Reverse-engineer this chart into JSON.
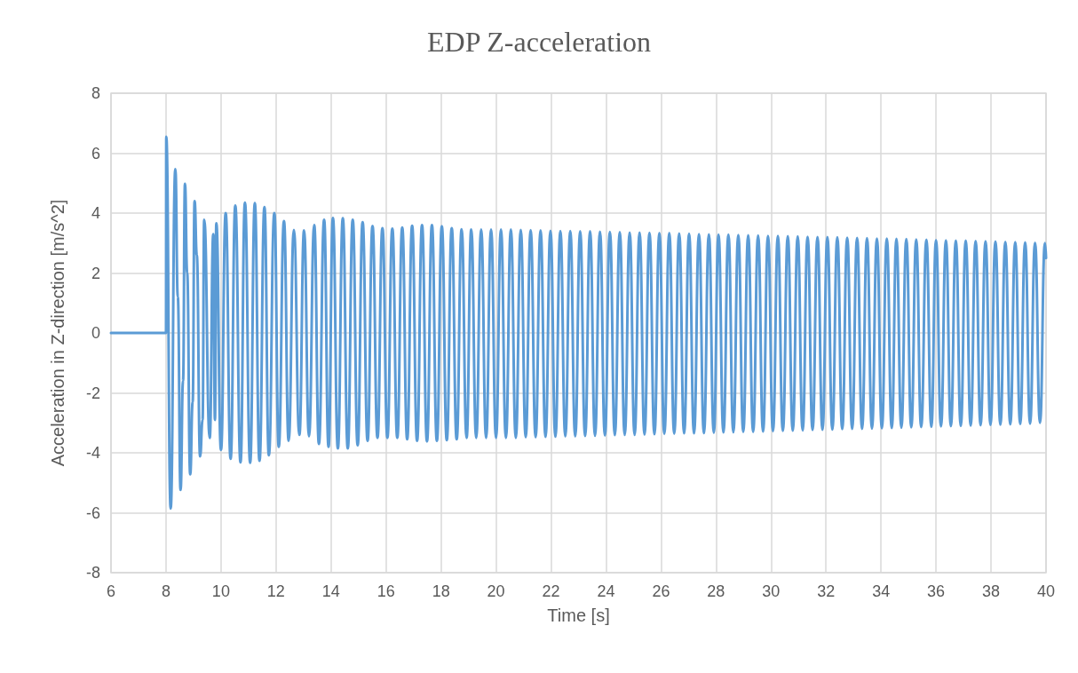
{
  "chart_data": {
    "type": "line",
    "title": "EDP Z-acceleration",
    "xlabel": "Time [s]",
    "ylabel": "Acceleration in Z-direction [m/s^2]",
    "xlim": [
      6,
      40
    ],
    "xticks": [
      6,
      8,
      10,
      12,
      14,
      16,
      18,
      20,
      22,
      24,
      26,
      28,
      30,
      32,
      34,
      36,
      38,
      40
    ],
    "ylim": [
      -8,
      8
    ],
    "yticks": [
      -8,
      -6,
      -4,
      -2,
      0,
      2,
      4,
      6,
      8
    ],
    "grid": true,
    "marker": "none",
    "line_style": "solid",
    "series": [
      {
        "color": "#5b9bd5",
        "x": [
          6,
          8,
          8.01,
          8.17,
          8.34,
          8.43,
          8.53,
          8.62,
          8.69,
          8.77,
          8.88,
          8.97,
          9.04,
          9.12,
          9.24,
          9.33,
          9.39,
          9.59,
          9.72,
          9.78,
          9.83,
          10,
          10.17,
          10.35,
          10.52,
          10.71,
          10.87,
          11.06,
          11.23,
          11.4,
          11.58,
          11.74,
          11.94,
          12.1,
          12.29,
          12.46,
          12.65,
          12.85,
          13.02,
          13.2,
          13.39,
          13.56,
          13.75,
          13.91,
          14.07,
          14.25,
          14.43,
          14.61,
          14.79,
          14.97,
          15.15,
          15.33,
          15.51,
          15.69,
          15.87,
          16.05,
          16.23,
          16.41,
          16.59,
          16.77,
          16.95,
          17.13,
          17.31,
          17.49,
          17.67,
          17.85,
          18.03,
          18.21,
          18.39,
          18.57,
          18.75,
          18.93,
          19.1,
          19.28,
          19.46,
          19.64,
          19.82,
          20,
          20.18,
          20.36,
          20.54,
          20.72,
          20.9,
          21.08,
          21.26,
          21.44,
          21.62,
          21.8,
          21.98,
          22.16,
          22.34,
          22.52,
          22.7,
          22.88,
          23.06,
          23.24,
          23.42,
          23.6,
          23.78,
          23.96,
          24.14,
          24.32,
          24.5,
          24.68,
          24.86,
          25.04,
          25.22,
          25.4,
          25.58,
          25.76,
          25.94,
          26.12,
          26.3,
          26.48,
          26.66,
          26.84,
          27.02,
          27.2,
          27.38,
          27.56,
          27.74,
          27.92,
          28.09,
          28.27,
          28.45,
          28.63,
          28.81,
          28.99,
          29.17,
          29.35,
          29.53,
          29.71,
          29.89,
          30.07,
          30.25,
          30.43,
          30.61,
          30.79,
          30.97,
          31.15,
          31.33,
          31.51,
          31.69,
          31.87,
          32.05,
          32.23,
          32.41,
          32.59,
          32.77,
          32.95,
          33.13,
          33.31,
          33.49,
          33.67,
          33.85,
          34.03,
          34.21,
          34.39,
          34.56,
          34.74,
          34.92,
          35.1,
          35.28,
          35.46,
          35.65,
          35.83,
          36,
          36.18,
          36.36,
          36.54,
          36.72,
          36.9,
          37.08,
          37.26,
          37.44,
          37.62,
          37.8,
          37.98,
          38.16,
          38.34,
          38.52,
          38.7,
          38.88,
          39.06,
          39.24,
          39.42,
          39.6,
          39.78,
          39.96,
          40
        ],
        "values": [
          0,
          0,
          6.55,
          -5.86,
          5.47,
          1.2,
          -5.24,
          -1.6,
          4.98,
          2,
          -4.72,
          -2.3,
          4.4,
          2.6,
          -4.12,
          -2.9,
          3.78,
          -3.5,
          3.3,
          -2.9,
          3.66,
          -3.9,
          4,
          -4.2,
          4.25,
          -4.32,
          4.35,
          -4.33,
          4.33,
          -4.27,
          4.2,
          -4.08,
          4,
          -3.8,
          3.73,
          -3.6,
          3.44,
          -3.4,
          3.42,
          -3.45,
          3.6,
          -3.7,
          3.78,
          -3.8,
          3.84,
          -3.85,
          3.83,
          -3.85,
          3.78,
          -3.75,
          3.7,
          -3.6,
          3.57,
          -3.5,
          3.5,
          -3.5,
          3.48,
          -3.5,
          3.52,
          -3.55,
          3.58,
          -3.6,
          3.6,
          -3.62,
          3.6,
          -3.6,
          3.56,
          -3.58,
          3.5,
          -3.55,
          3.46,
          -3.5,
          3.45,
          -3.5,
          3.45,
          -3.5,
          3.45,
          -3.5,
          3.45,
          -3.5,
          3.45,
          -3.5,
          3.44,
          -3.48,
          3.43,
          -3.48,
          3.42,
          -3.47,
          3.41,
          -3.46,
          3.4,
          -3.45,
          3.4,
          -3.45,
          3.39,
          -3.44,
          3.39,
          -3.43,
          3.38,
          -3.42,
          3.37,
          -3.41,
          3.36,
          -3.4,
          3.35,
          -3.4,
          3.35,
          -3.39,
          3.34,
          -3.38,
          3.33,
          -3.37,
          3.33,
          -3.36,
          3.32,
          -3.35,
          3.31,
          -3.35,
          3.3,
          -3.34,
          3.29,
          -3.33,
          3.28,
          -3.32,
          3.28,
          -3.31,
          3.27,
          -3.3,
          3.26,
          -3.3,
          3.25,
          -3.29,
          3.24,
          -3.28,
          3.24,
          -3.27,
          3.23,
          -3.26,
          3.22,
          -3.25,
          3.21,
          -3.24,
          3.2,
          -3.23,
          3.2,
          -3.22,
          3.19,
          -3.21,
          3.18,
          -3.2,
          3.17,
          -3.2,
          3.16,
          -3.19,
          3.15,
          -3.18,
          3.15,
          -3.17,
          3.14,
          -3.16,
          3.13,
          -3.15,
          3.12,
          -3.14,
          3.11,
          -3.13,
          3.1,
          -3.12,
          3.09,
          -3.11,
          3.08,
          -3.1,
          3.08,
          -3.09,
          3.07,
          -3.08,
          3.06,
          -3.07,
          3.05,
          -3.06,
          3.04,
          -3.05,
          3.03,
          -3.04,
          3.02,
          -3.03,
          3.01,
          -3,
          3,
          2.5
        ]
      }
    ]
  }
}
